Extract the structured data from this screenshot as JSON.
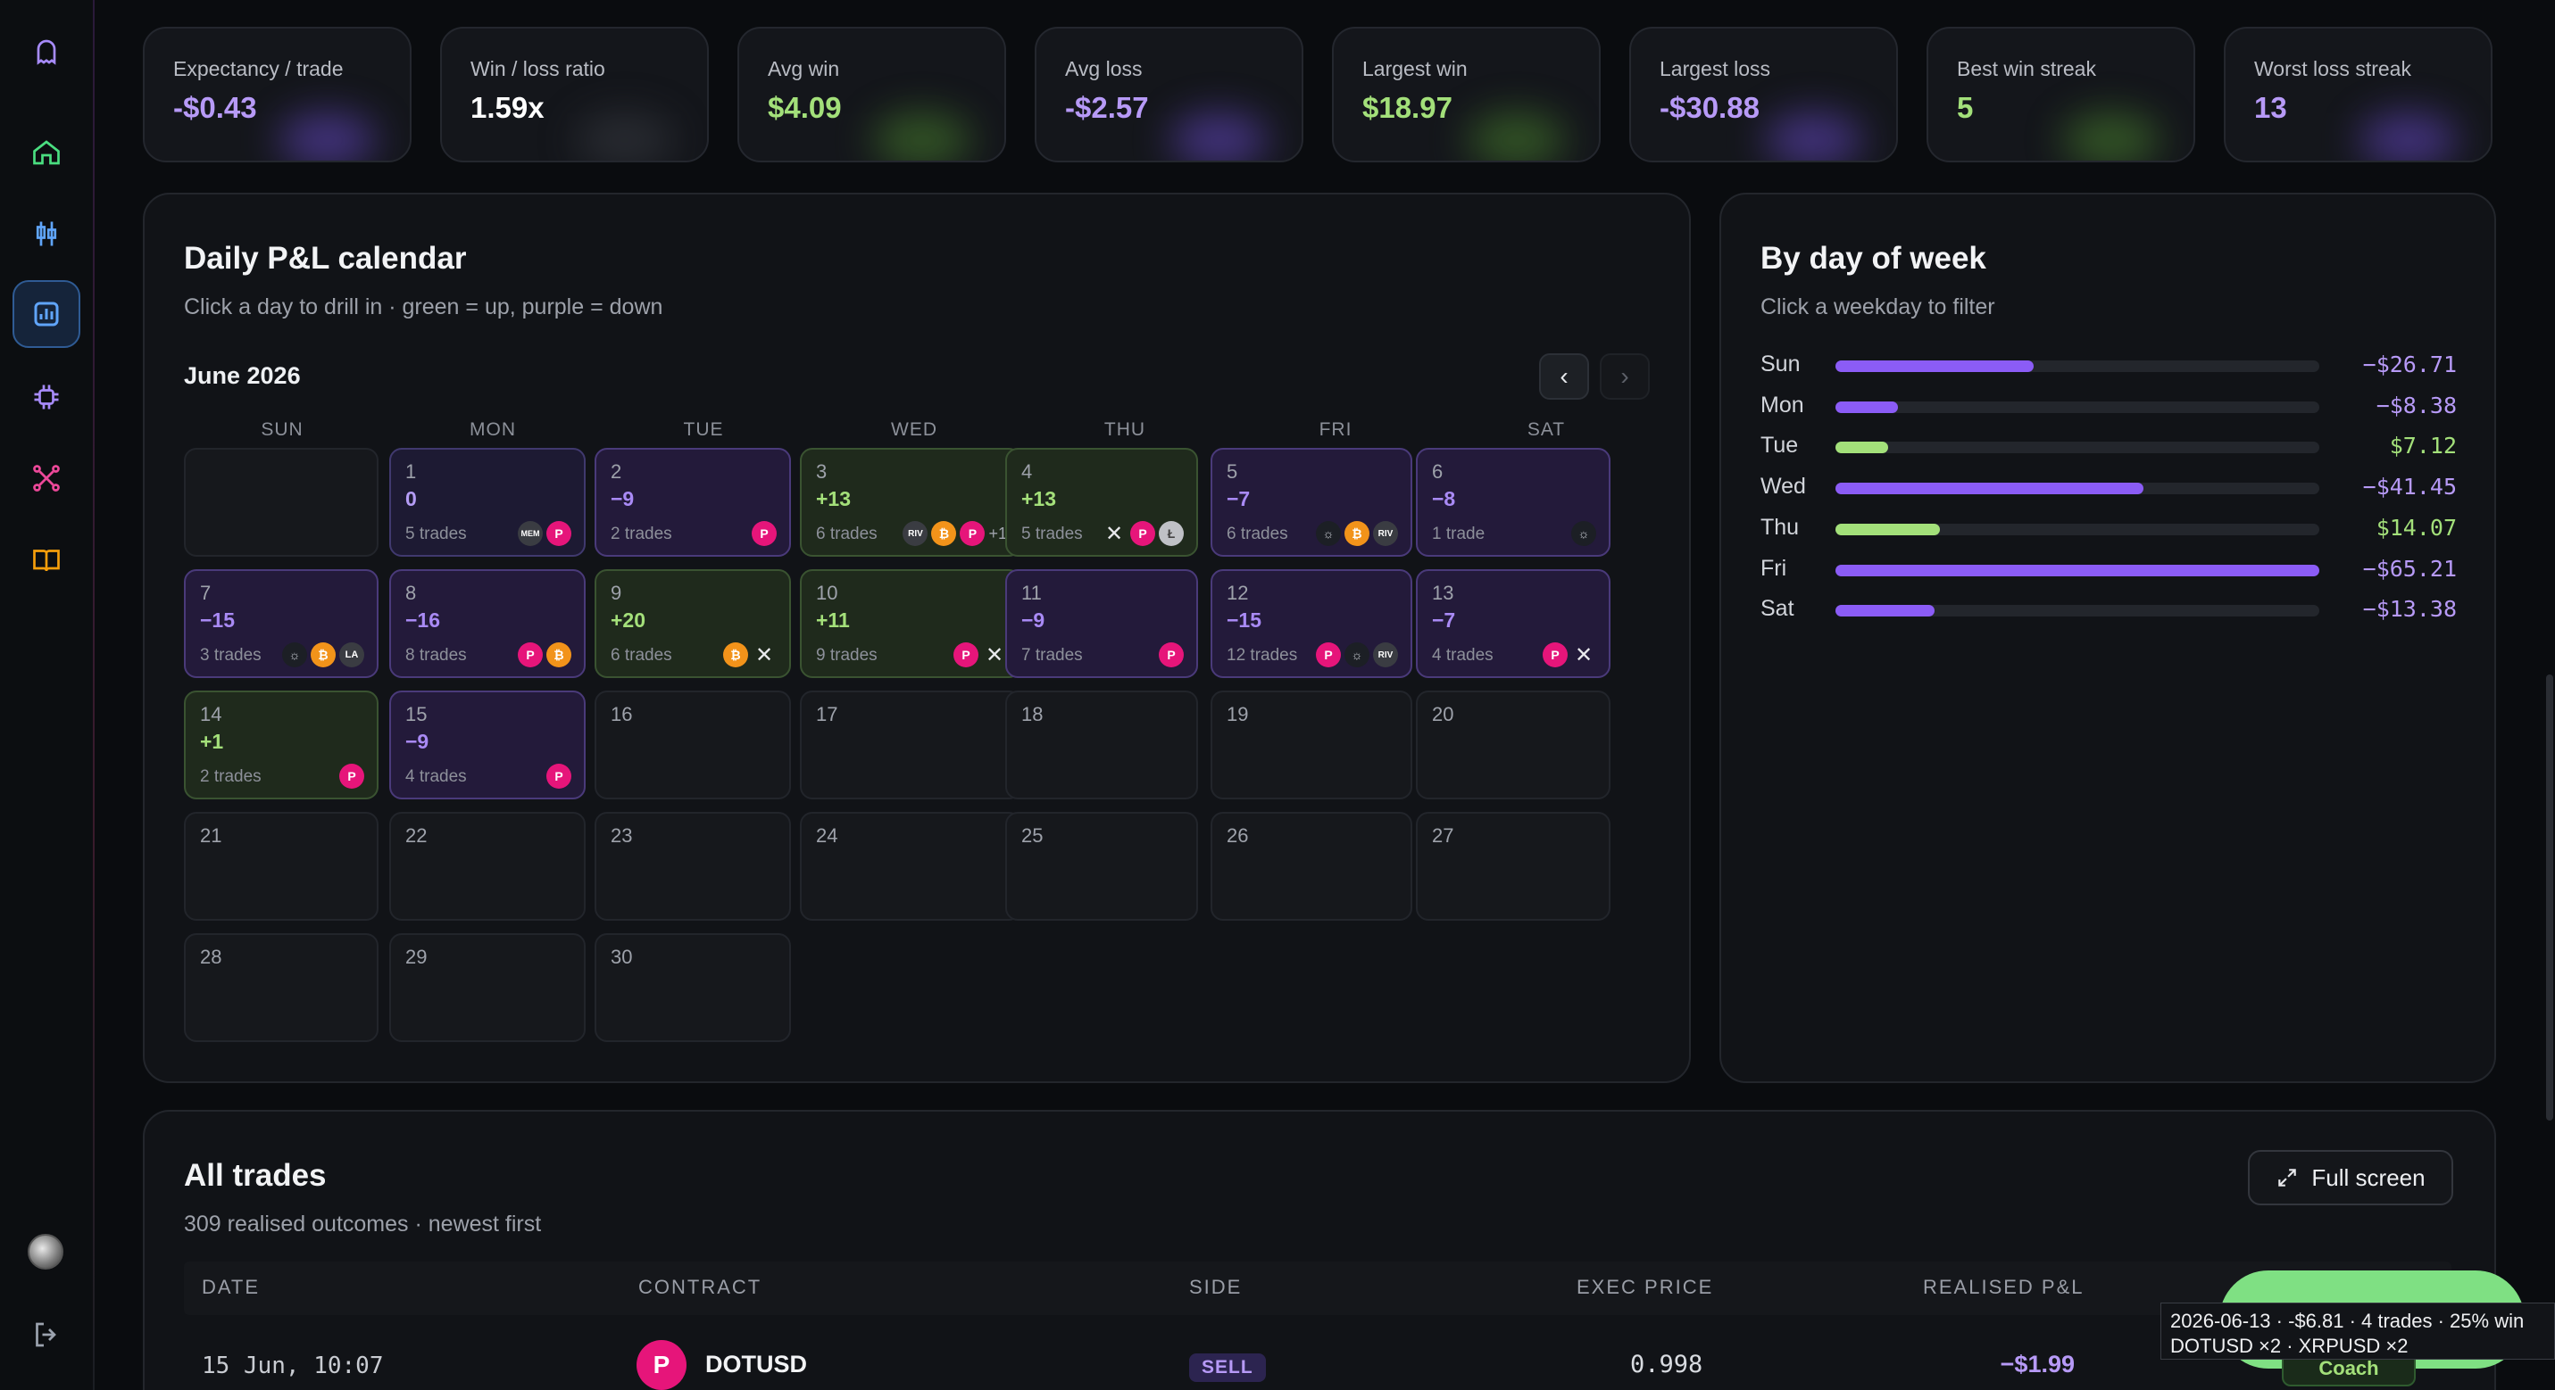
{
  "stats": [
    {
      "label": "Expectancy / trade",
      "value": "-$0.43",
      "color": "#b79af7",
      "glow": "#6a4bd0"
    },
    {
      "label": "Win / loss ratio",
      "value": "1.59x",
      "color": "#ffffff",
      "glow": "#3a3d44"
    },
    {
      "label": "Avg win",
      "value": "$4.09",
      "color": "#a3e07a",
      "glow": "#4d8a2f"
    },
    {
      "label": "Avg loss",
      "value": "-$2.57",
      "color": "#b79af7",
      "glow": "#6a4bd0"
    },
    {
      "label": "Largest win",
      "value": "$18.97",
      "color": "#a3e07a",
      "glow": "#4d8a2f"
    },
    {
      "label": "Largest loss",
      "value": "-$30.88",
      "color": "#b79af7",
      "glow": "#6a4bd0"
    },
    {
      "label": "Best win streak",
      "value": "5",
      "color": "#a3e07a",
      "glow": "#4d8a2f"
    },
    {
      "label": "Worst loss streak",
      "value": "13",
      "color": "#b79af7",
      "glow": "#6a4bd0"
    }
  ],
  "calendar": {
    "title": "Daily P&L calendar",
    "subtitle": "Click a day to drill in · green = up, purple = down",
    "month": "June 2026",
    "prev": "‹",
    "next": "›",
    "weekdays": [
      "SUN",
      "MON",
      "TUE",
      "WED",
      "THU",
      "FRI",
      "SAT"
    ],
    "days": [
      {
        "d": "1",
        "pl": "0",
        "trades": "5 trades",
        "kind": "neutral",
        "coins": [
          "mem",
          "dot"
        ]
      },
      {
        "d": "2",
        "pl": "−9",
        "trades": "2 trades",
        "kind": "down",
        "coins": [
          "dot"
        ]
      },
      {
        "d": "3",
        "pl": "+13",
        "trades": "6 trades",
        "kind": "up",
        "coins": [
          "riv",
          "btc",
          "dot",
          "more"
        ]
      },
      {
        "d": "4",
        "pl": "+13",
        "trades": "5 trades",
        "kind": "up",
        "coins": [
          "xrp",
          "dot",
          "ltc"
        ]
      },
      {
        "d": "5",
        "pl": "−7",
        "trades": "6 trades",
        "kind": "down",
        "coins": [
          "sol",
          "btc",
          "riv"
        ]
      },
      {
        "d": "6",
        "pl": "−8",
        "trades": "1 trade",
        "kind": "down",
        "coins": [
          "sol"
        ]
      },
      {
        "d": "7",
        "pl": "−15",
        "trades": "3 trades",
        "kind": "down",
        "coins": [
          "sol",
          "btc",
          "la"
        ]
      },
      {
        "d": "8",
        "pl": "−16",
        "trades": "8 trades",
        "kind": "down",
        "coins": [
          "dot",
          "btc"
        ]
      },
      {
        "d": "9",
        "pl": "+20",
        "trades": "6 trades",
        "kind": "up",
        "coins": [
          "btc",
          "xrp"
        ]
      },
      {
        "d": "10",
        "pl": "+11",
        "trades": "9 trades",
        "kind": "up",
        "coins": [
          "dot",
          "xrp"
        ]
      },
      {
        "d": "11",
        "pl": "−9",
        "trades": "7 trades",
        "kind": "down",
        "coins": [
          "dot"
        ]
      },
      {
        "d": "12",
        "pl": "−15",
        "trades": "12 trades",
        "kind": "down",
        "coins": [
          "dot",
          "sol",
          "riv"
        ]
      },
      {
        "d": "13",
        "pl": "−7",
        "trades": "4 trades",
        "kind": "down",
        "coins": [
          "dot",
          "xrp"
        ]
      },
      {
        "d": "14",
        "pl": "+1",
        "trades": "2 trades",
        "kind": "up",
        "coins": [
          "dot"
        ]
      },
      {
        "d": "15",
        "pl": "−9",
        "trades": "4 trades",
        "kind": "down",
        "coins": [
          "dot"
        ]
      },
      {
        "d": "16"
      },
      {
        "d": "17"
      },
      {
        "d": "18"
      },
      {
        "d": "19"
      },
      {
        "d": "20"
      },
      {
        "d": "21"
      },
      {
        "d": "22"
      },
      {
        "d": "23"
      },
      {
        "d": "24"
      },
      {
        "d": "25"
      },
      {
        "d": "26"
      },
      {
        "d": "27"
      },
      {
        "d": "28"
      },
      {
        "d": "29"
      },
      {
        "d": "30"
      }
    ],
    "coin_glyphs": {
      "dot": "P",
      "btc": "₿",
      "riv": "RIV",
      "mem": "MEM",
      "la": "LA",
      "sol": "☼",
      "ltc": "Ł",
      "xrp": "✕",
      "more": "+1"
    }
  },
  "dow": {
    "title": "By day of week",
    "subtitle": "Click a weekday to filter",
    "rows": [
      {
        "name": "Sun",
        "value": -26.71,
        "label": "−$26.71"
      },
      {
        "name": "Mon",
        "value": -8.38,
        "label": "−$8.38"
      },
      {
        "name": "Tue",
        "value": 7.12,
        "label": "$7.12"
      },
      {
        "name": "Wed",
        "value": -41.45,
        "label": "−$41.45"
      },
      {
        "name": "Thu",
        "value": 14.07,
        "label": "$14.07"
      },
      {
        "name": "Fri",
        "value": -65.21,
        "label": "−$65.21"
      },
      {
        "name": "Sat",
        "value": -13.38,
        "label": "−$13.38"
      }
    ],
    "max": 65.21,
    "up_color": "#a3e07a",
    "down_color": "#8b5cf6"
  },
  "trades": {
    "title": "All trades",
    "subtitle": "309 realised outcomes · newest first",
    "fullscreen": "Full screen",
    "columns": [
      "DATE",
      "CONTRACT",
      "SIDE",
      "EXEC PRICE",
      "REALISED P&L"
    ],
    "row": {
      "date": "15 Jun, 10:07",
      "contract": "DOTUSD",
      "side": "SELL",
      "price": "0.998",
      "pl": "−$1.99"
    },
    "tooltip_line1": "2026-06-13 · -$6.81 · 4 trades · 25% win",
    "tooltip_line2": "DOTUSD ×2 · XRPUSD ×2",
    "coach": "Coach"
  }
}
